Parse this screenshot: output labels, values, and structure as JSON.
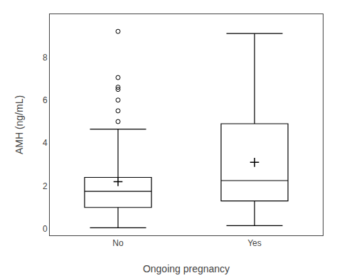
{
  "chart_data": {
    "type": "box",
    "xlabel": "Ongoing pregnancy",
    "ylabel": "AMH (ng/mL)",
    "categories": [
      "No",
      "Yes"
    ],
    "boxes": [
      {
        "q1": 1.0,
        "median": 1.75,
        "q3": 2.4,
        "whisker_low": 0.05,
        "whisker_high": 4.65,
        "mean": 2.2,
        "outliers": [
          5.0,
          5.5,
          6.0,
          6.5,
          6.6,
          7.05,
          9.2
        ]
      },
      {
        "q1": 1.3,
        "median": 2.25,
        "q3": 4.9,
        "whisker_low": 0.15,
        "whisker_high": 9.1,
        "mean": 3.1,
        "outliers": []
      }
    ],
    "color": "black",
    "ylim": [
      -0.3,
      10.0
    ],
    "yticks": [
      0,
      2,
      4,
      6,
      8
    ],
    "grid": false
  }
}
